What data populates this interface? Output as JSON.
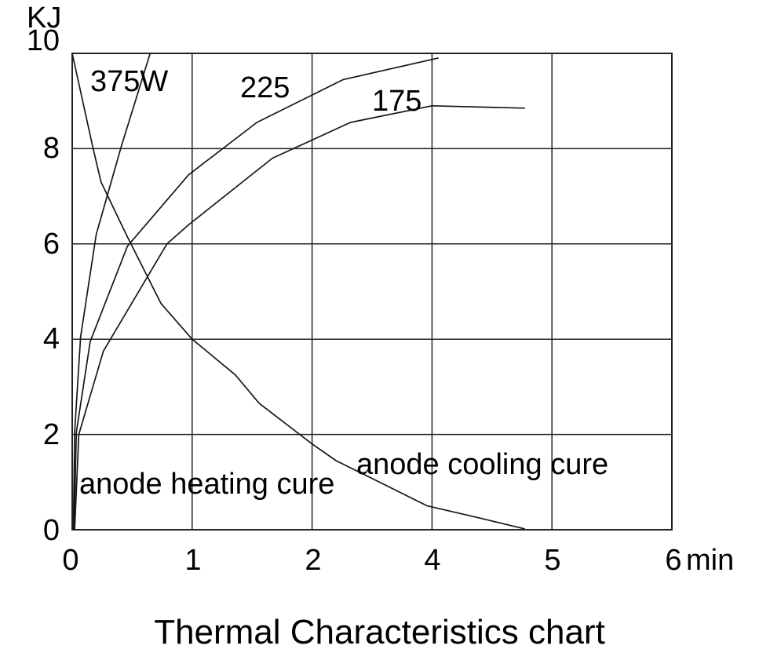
{
  "chart_data": {
    "type": "line",
    "title": "Thermal Characteristics chart",
    "y_axis": {
      "label": "KJ",
      "tick_labels": [
        "10",
        "8",
        "6",
        "4",
        "2",
        "0"
      ],
      "range": [
        0,
        10
      ],
      "gridlines": true
    },
    "x_axis": {
      "unit_label": "min",
      "tick_labels": [
        "0",
        "1",
        "2",
        "4",
        "5",
        "6"
      ],
      "gridline_positions": [
        0,
        1,
        2,
        3,
        4,
        5
      ],
      "note": "six evenly spaced vertical gridlines; printed tick labels skip the value 3",
      "gridlines": true
    },
    "points_units": "[x in gridline-position units 0-5, y in KJ]",
    "series": [
      {
        "name": "375W",
        "group": "anode heating",
        "points": [
          [
            0.01,
            0
          ],
          [
            0.02,
            2.05
          ],
          [
            0.07,
            4.05
          ],
          [
            0.2,
            6.2
          ],
          [
            0.41,
            8.05
          ],
          [
            0.65,
            10
          ]
        ]
      },
      {
        "name": "225",
        "group": "anode heating",
        "points": [
          [
            0.015,
            0
          ],
          [
            0.035,
            2.05
          ],
          [
            0.15,
            3.95
          ],
          [
            0.46,
            5.95
          ],
          [
            0.97,
            7.45
          ],
          [
            1.54,
            8.55
          ],
          [
            2.26,
            9.45
          ],
          [
            3.05,
            9.9
          ]
        ]
      },
      {
        "name": "175",
        "group": "anode heating",
        "points": [
          [
            0.02,
            0
          ],
          [
            0.055,
            2.0
          ],
          [
            0.26,
            3.75
          ],
          [
            0.79,
            6.0
          ],
          [
            0.97,
            6.4
          ],
          [
            1.67,
            7.8
          ],
          [
            2.32,
            8.55
          ],
          [
            3.0,
            8.9
          ],
          [
            3.77,
            8.85
          ]
        ]
      },
      {
        "name": "anode cooling",
        "group": "anode cooling",
        "points": [
          [
            0,
            10
          ],
          [
            0.17,
            8.05
          ],
          [
            0.24,
            7.3
          ],
          [
            0.45,
            6.2
          ],
          [
            0.74,
            4.75
          ],
          [
            1.0,
            4.0
          ],
          [
            1.36,
            3.25
          ],
          [
            1.56,
            2.65
          ],
          [
            2.0,
            1.8
          ],
          [
            2.2,
            1.45
          ],
          [
            2.6,
            0.95
          ],
          [
            2.96,
            0.5
          ],
          [
            3.39,
            0.25
          ],
          [
            3.77,
            0.02
          ]
        ]
      }
    ],
    "annotations": [
      {
        "text": "anode heating cure"
      },
      {
        "text": "anode cooling cure"
      }
    ],
    "legend": "none",
    "colors": {
      "line": "#161616",
      "grid": "#222222",
      "text": "#000000",
      "background": "#ffffff"
    }
  }
}
